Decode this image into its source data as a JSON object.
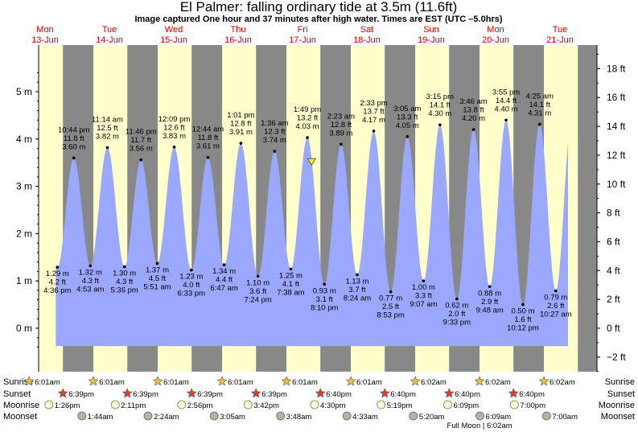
{
  "title": "El Palmer: falling  ordinary tide at 3.5m (11.6ft)",
  "subtitle": "Image captured One hour and 37 minutes after high water. Times are EST (UTC –5.0hrs)",
  "days": [
    {
      "dow": "Mon",
      "date": "13-Jun"
    },
    {
      "dow": "Tue",
      "date": "14-Jun"
    },
    {
      "dow": "Wed",
      "date": "15-Jun"
    },
    {
      "dow": "Thu",
      "date": "16-Jun"
    },
    {
      "dow": "Fri",
      "date": "17-Jun"
    },
    {
      "dow": "Sat",
      "date": "18-Jun"
    },
    {
      "dow": "Sun",
      "date": "19-Jun"
    },
    {
      "dow": "Mon",
      "date": "20-Jun"
    },
    {
      "dow": "Tue",
      "date": "21-Jun"
    }
  ],
  "chart_data": {
    "type": "area",
    "x_unit": "hours after 00:00 Mon 13-Jun (EST)",
    "ylim_m": [
      -0.5,
      5.6
    ],
    "left_ticks": [
      "0 m",
      "1 m",
      "2 m",
      "3 m",
      "4 m",
      "5 m"
    ],
    "right_ticks": [
      "−2 ft",
      "0 ft",
      "2 ft",
      "4 ft",
      "6 ft",
      "8 ft",
      "10 ft",
      "12 ft",
      "14 ft",
      "16 ft",
      "18 ft"
    ],
    "extremes": [
      {
        "t": "4:36 pm",
        "m": "1.29 m",
        "ft": "4.2 ft",
        "type": "low",
        "h": 16.6,
        "v": 1.29
      },
      {
        "t": "10:44 pm",
        "m": "11.8 ft",
        "ft": "3.60 m",
        "type": "high",
        "h": 22.73,
        "v": 3.6
      },
      {
        "t": "4:53 am",
        "m": "1.32 m",
        "ft": "4.3 ft",
        "type": "low",
        "h": 28.88,
        "v": 1.32
      },
      {
        "t": "11:14 am",
        "m": "12.5 ft",
        "ft": "3.82 m",
        "type": "high",
        "h": 35.23,
        "v": 3.82
      },
      {
        "t": "5:36 pm",
        "m": "1.30 m",
        "ft": "4.3 ft",
        "type": "low",
        "h": 41.6,
        "v": 1.3
      },
      {
        "t": "11:46 pm",
        "m": "11.7 ft",
        "ft": "3.56 m",
        "type": "high",
        "h": 47.77,
        "v": 3.56
      },
      {
        "t": "5:51 am",
        "m": "1.37 m",
        "ft": "4.5 ft",
        "type": "low",
        "h": 53.85,
        "v": 1.37
      },
      {
        "t": "12:09 pm",
        "m": "12.6 ft",
        "ft": "3.83 m",
        "type": "high",
        "h": 60.15,
        "v": 3.83
      },
      {
        "t": "6:33 pm",
        "m": "1.23 m",
        "ft": "4.0 ft",
        "type": "low",
        "h": 66.55,
        "v": 1.23
      },
      {
        "t": "12:44 am",
        "m": "11.8 ft",
        "ft": "3.61 m",
        "type": "high",
        "h": 72.73,
        "v": 3.61
      },
      {
        "t": "6:47 am",
        "m": "1.34 m",
        "ft": "4.4 ft",
        "type": "low",
        "h": 78.78,
        "v": 1.34
      },
      {
        "t": "1:01 pm",
        "m": "12.8 ft",
        "ft": "3.91 m",
        "type": "high",
        "h": 85.02,
        "v": 3.91
      },
      {
        "t": "7:24 pm",
        "m": "1.10 m",
        "ft": "3.6 ft",
        "type": "low",
        "h": 91.4,
        "v": 1.1
      },
      {
        "t": "1:36 am",
        "m": "12.3 ft",
        "ft": "3.74 m",
        "type": "high",
        "h": 97.6,
        "v": 3.74
      },
      {
        "t": "7:38 am",
        "m": "1.25 m",
        "ft": "4.1 ft",
        "type": "low",
        "h": 103.63,
        "v": 1.25
      },
      {
        "t": "1:49 pm",
        "m": "13.2 ft",
        "ft": "4.03 m",
        "type": "high",
        "h": 109.82,
        "v": 4.03
      },
      {
        "t": "8:10 pm",
        "m": "0.93 m",
        "ft": "3.1 ft",
        "type": "low",
        "h": 116.17,
        "v": 0.93
      },
      {
        "t": "2:23 am",
        "m": "12.8 ft",
        "ft": "3.89 m",
        "type": "high",
        "h": 122.38,
        "v": 3.89
      },
      {
        "t": "8:24 am",
        "m": "1.13 m",
        "ft": "3.7 ft",
        "type": "low",
        "h": 128.4,
        "v": 1.13
      },
      {
        "t": "2:33 pm",
        "m": "13.7 ft",
        "ft": "4.17 m",
        "type": "high",
        "h": 134.55,
        "v": 4.17
      },
      {
        "t": "8:53 pm",
        "m": "0.77 m",
        "ft": "2.5 ft",
        "type": "low",
        "h": 140.88,
        "v": 0.77
      },
      {
        "t": "3:05 am",
        "m": "13.3 ft",
        "ft": "4.05 m",
        "type": "high",
        "h": 147.08,
        "v": 4.05
      },
      {
        "t": "9:07 am",
        "m": "1.00 m",
        "ft": "3.3 ft",
        "type": "low",
        "h": 153.12,
        "v": 1.0
      },
      {
        "t": "3:15 pm",
        "m": "14.1 ft",
        "ft": "4.30 m",
        "type": "high",
        "h": 159.25,
        "v": 4.3
      },
      {
        "t": "9:33 pm",
        "m": "0.62 m",
        "ft": "2.0 ft",
        "type": "low",
        "h": 165.55,
        "v": 0.62
      },
      {
        "t": "3:46 am",
        "m": "13.8 ft",
        "ft": "4.20 m",
        "type": "high",
        "h": 171.77,
        "v": 4.2
      },
      {
        "t": "9:48 am",
        "m": "0.88 m",
        "ft": "2.9 ft",
        "type": "low",
        "h": 177.8,
        "v": 0.88
      },
      {
        "t": "3:55 pm",
        "m": "14.4 ft",
        "ft": "4.40 m",
        "type": "high",
        "h": 183.92,
        "v": 4.4
      },
      {
        "t": "10:12 pm",
        "m": "0.50 m",
        "ft": "1.6 ft",
        "type": "low",
        "h": 190.2,
        "v": 0.5
      },
      {
        "t": "4:25 am",
        "m": "14.1 ft",
        "ft": "4.31 m",
        "type": "high",
        "h": 196.42,
        "v": 4.31
      },
      {
        "t": "10:27 am",
        "m": "0.79 m",
        "ft": "2.6 ft",
        "type": "low",
        "h": 202.45,
        "v": 0.79
      }
    ],
    "current_marker": {
      "h": 111.4,
      "v": 3.5
    },
    "sunrise": [
      "6:01am",
      "6:01am",
      "6:01am",
      "6:01am",
      "6:01am",
      "6:01am",
      "6:02am",
      "6:02am",
      "6:02am"
    ],
    "sunset": [
      "6:39pm",
      "6:39pm",
      "6:39pm",
      "6:39pm",
      "6:40pm",
      "6:40pm",
      "6:40pm",
      "6:40pm"
    ],
    "moonrise": [
      "1:26pm",
      "2:11pm",
      "2:56pm",
      "3:42pm",
      "4:30pm",
      "5:19pm",
      "6:09pm",
      "7:00pm"
    ],
    "moonset": [
      "1:44am",
      "2:24am",
      "3:05am",
      "3:48am",
      "4:33am",
      "5:20am",
      "6:09am",
      "7:00am"
    ],
    "full_moon_note": "Full Moon | 6:02am",
    "row_labels": [
      "Sunrise",
      "Sunset",
      "Moonrise",
      "Moonset"
    ],
    "colors": {
      "day": "#ffffcc",
      "night": "#888888",
      "water": "#9aa8ff",
      "sun": "#e8c33a",
      "sunset": "#d8402e",
      "moon": "#ffffcc",
      "moonset": "#b3b3a0",
      "day_label": "#dd0000"
    }
  }
}
